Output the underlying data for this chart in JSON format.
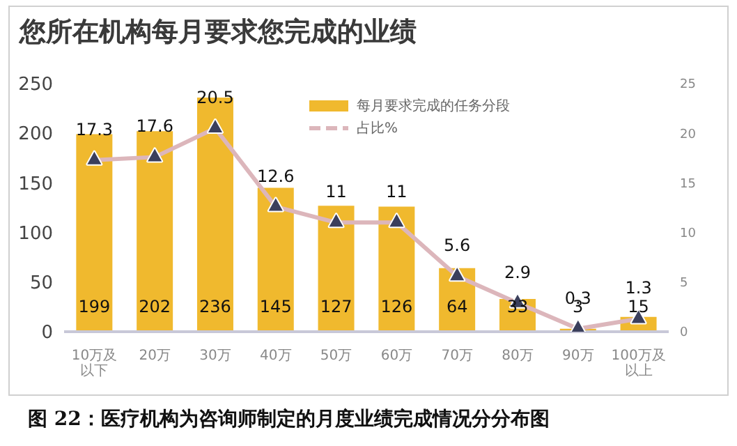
{
  "chart_data": {
    "type": "bar",
    "title": "您所在机构每月要求您完成的业绩",
    "categories": [
      "10万及以下",
      "20万",
      "30万",
      "40万",
      "50万",
      "60万",
      "70万",
      "80万",
      "90万",
      "100万及以上"
    ],
    "series": [
      {
        "name": "每月要求完成的任务分段",
        "color": "#f0b92e",
        "values": [
          199,
          202,
          236,
          145,
          127,
          126,
          64,
          33,
          3,
          15
        ]
      },
      {
        "name": "占比%",
        "type": "line",
        "axis": "y2",
        "color": "#dcb6bb",
        "values": [
          17.3,
          17.6,
          20.5,
          12.6,
          11,
          11,
          5.6,
          2.9,
          0.3,
          1.3
        ]
      }
    ],
    "ylim": [
      0,
      250
    ],
    "yticks": [
      0,
      50,
      100,
      150,
      200,
      250
    ],
    "y2lim": [
      0,
      25
    ],
    "y2ticks": [
      0,
      5,
      10,
      15,
      20,
      25
    ],
    "data_labels": true,
    "grid": false,
    "legend": "top right",
    "marker": "triangle",
    "annotations": [
      "图 22：医疗机构为咨询师制定的月度业绩完成情况分分布图"
    ]
  }
}
